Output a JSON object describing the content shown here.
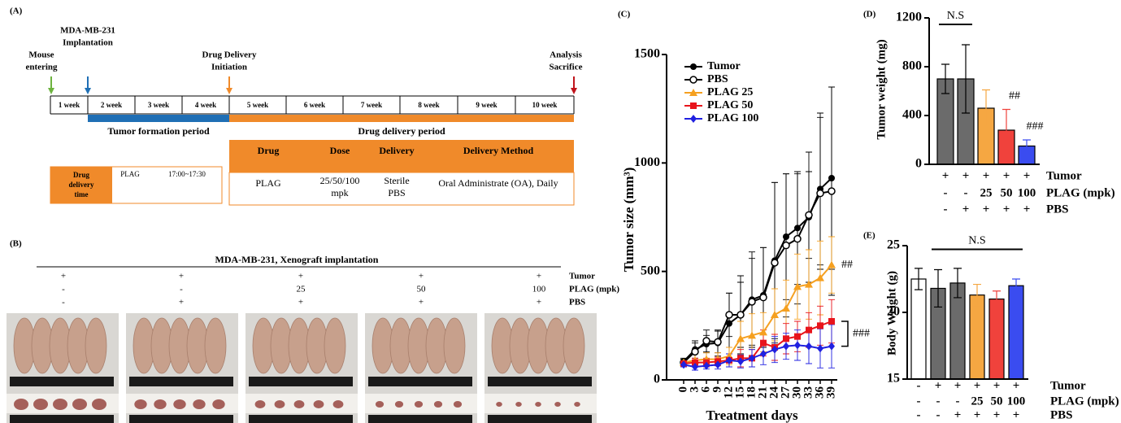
{
  "panel_a": {
    "label": "(A)",
    "markers": [
      {
        "lines": [
          "Mouse",
          "entering"
        ],
        "color": "#6db33f"
      },
      {
        "lines": [
          "MDA-MB-231",
          "Implantation"
        ],
        "color": "#1f6fb5"
      },
      {
        "lines": [
          "Drug Delivery",
          "Initiation"
        ],
        "color": "#f08a2a"
      },
      {
        "lines": [
          "Analysis",
          "Sacrifice"
        ],
        "color": "#c0141c",
        "first_line_color": "#c0141c"
      }
    ],
    "weeks": [
      "1 week",
      "2 week",
      "3 week",
      "4 week",
      "5 week",
      "6 week",
      "7 week",
      "8 week",
      "9 week",
      "10 week"
    ],
    "periods": [
      {
        "label": "Tumor formation period",
        "color": "#1f6fb5"
      },
      {
        "label": "Drug delivery period",
        "color": "#f08a2a"
      }
    ],
    "time_box": {
      "header": [
        "Drug",
        "delivery",
        "time"
      ],
      "drug": "PLAG",
      "time": "17:00~17:30"
    },
    "table": {
      "header": [
        "Drug",
        "Dose",
        "Delivery",
        "Delivery Method"
      ],
      "row": [
        [
          "PLAG"
        ],
        [
          "25/50/100",
          "mpk"
        ],
        [
          "Sterile",
          "PBS"
        ],
        [
          "Oral Administrate (OA), Daily"
        ]
      ]
    }
  },
  "panel_b": {
    "label": "(B)",
    "title": "MDA-MB-231, Xenograft implantation",
    "row_labels": [
      "Tumor",
      "PLAG (mpk)",
      "PBS"
    ],
    "groups": [
      [
        "+",
        "-",
        "-"
      ],
      [
        "+",
        "-",
        "+"
      ],
      [
        "+",
        "25",
        "+"
      ],
      [
        "+",
        "50",
        "+"
      ],
      [
        "+",
        "100",
        "+"
      ]
    ]
  },
  "chart_data": [
    {
      "type": "line",
      "label": "(C)",
      "xlabel": "Treatment days",
      "ylabel": "Tumor size (mm³)",
      "x": [
        0,
        3,
        6,
        9,
        12,
        15,
        18,
        21,
        24,
        27,
        30,
        33,
        36,
        39
      ],
      "xlim": [
        -4.5,
        40.5
      ],
      "xticks": [
        0,
        3,
        6,
        9,
        12,
        15,
        18,
        21,
        24,
        27,
        30,
        33,
        36,
        39
      ],
      "ylim": [
        0,
        1500
      ],
      "yticks": [
        0,
        500,
        1000,
        1500
      ],
      "legend": "upper left",
      "series": [
        {
          "name": "Tumor",
          "color": "#000000",
          "marker": "circle",
          "values": [
            85,
            140,
            165,
            170,
            260,
            300,
            370,
            390,
            550,
            660,
            700,
            750,
            880,
            930
          ],
          "errors": [
            15,
            40,
            40,
            60,
            140,
            180,
            220,
            220,
            360,
            290,
            260,
            300,
            350,
            420
          ]
        },
        {
          "name": "PBS",
          "color": "#000000",
          "marker": "open-circle",
          "values": [
            80,
            130,
            180,
            175,
            300,
            300,
            360,
            380,
            540,
            620,
            650,
            760,
            860,
            870
          ],
          "errors": [
            15,
            40,
            50,
            50,
            100,
            150,
            200,
            230,
            370,
            330,
            300,
            200,
            350,
            480
          ]
        },
        {
          "name": "PLAG 25",
          "color": "#f5a020",
          "marker": "triangle",
          "values": [
            80,
            90,
            95,
            95,
            110,
            190,
            205,
            220,
            300,
            330,
            430,
            440,
            470,
            530
          ],
          "errors": [
            10,
            30,
            30,
            30,
            40,
            80,
            100,
            90,
            120,
            130,
            150,
            160,
            170,
            130
          ]
        },
        {
          "name": "PLAG 50",
          "color": "#e8141c",
          "marker": "square",
          "values": [
            75,
            80,
            80,
            85,
            90,
            100,
            100,
            170,
            150,
            190,
            200,
            230,
            250,
            270
          ],
          "errors": [
            10,
            20,
            20,
            20,
            30,
            40,
            40,
            60,
            60,
            70,
            70,
            80,
            90,
            100
          ]
        },
        {
          "name": "PLAG 100",
          "color": "#2020e0",
          "marker": "diamond",
          "values": [
            70,
            60,
            65,
            70,
            90,
            85,
            100,
            120,
            140,
            155,
            160,
            155,
            145,
            155
          ],
          "errors": [
            10,
            15,
            15,
            20,
            30,
            30,
            40,
            50,
            60,
            60,
            70,
            80,
            90,
            100
          ]
        }
      ],
      "annotations": [
        {
          "text": "##",
          "series": [
            "PLAG 25"
          ]
        },
        {
          "text": "###",
          "series": [
            "PLAG 50",
            "PLAG 100"
          ]
        }
      ]
    },
    {
      "type": "bar",
      "label": "(D)",
      "ylabel": "Tumor weight (mg)",
      "ylim": [
        0,
        1200
      ],
      "yticks": [
        0,
        400,
        800,
        1200
      ],
      "values": [
        700,
        700,
        460,
        280,
        150
      ],
      "errors": [
        120,
        280,
        150,
        170,
        50
      ],
      "colors": [
        "#6b6b6b",
        "#6b6b6b",
        "#f5a742",
        "#f0423c",
        "#3a4cf0"
      ],
      "row_labels": [
        "Tumor",
        "PLAG (mpk)",
        "PBS"
      ],
      "groups": [
        [
          "+",
          "-",
          "-"
        ],
        [
          "+",
          "-",
          "+"
        ],
        [
          "+",
          "25",
          "+"
        ],
        [
          "+",
          "50",
          "+"
        ],
        [
          "+",
          "100",
          "+"
        ]
      ],
      "annotations": [
        {
          "text": "N.S",
          "bars": [
            0,
            1
          ]
        },
        {
          "text": "##",
          "bars": [
            3
          ]
        },
        {
          "text": "###",
          "bars": [
            4
          ]
        }
      ]
    },
    {
      "type": "bar",
      "label": "(E)",
      "ylabel": "Body Weight (g)",
      "ylim": [
        15,
        25
      ],
      "yticks": [
        15,
        20,
        25
      ],
      "values": [
        22.5,
        21.8,
        22.2,
        21.3,
        21.0,
        22.0
      ],
      "errors": [
        0.8,
        1.4,
        1.1,
        0.8,
        0.6,
        0.5
      ],
      "colors": [
        "#ffffff",
        "#6b6b6b",
        "#6b6b6b",
        "#f5a742",
        "#f0423c",
        "#3a4cf0"
      ],
      "row_labels": [
        "Tumor",
        "PLAG (mpk)",
        "PBS"
      ],
      "groups": [
        [
          "-",
          "-",
          "-"
        ],
        [
          "+",
          "-",
          "-"
        ],
        [
          "+",
          "-",
          "+"
        ],
        [
          "+",
          "25",
          "+"
        ],
        [
          "+",
          "50",
          "+"
        ],
        [
          "+",
          "100",
          "+"
        ]
      ],
      "annotations": [
        {
          "text": "N.S",
          "bars": [
            1,
            5
          ]
        }
      ]
    }
  ]
}
